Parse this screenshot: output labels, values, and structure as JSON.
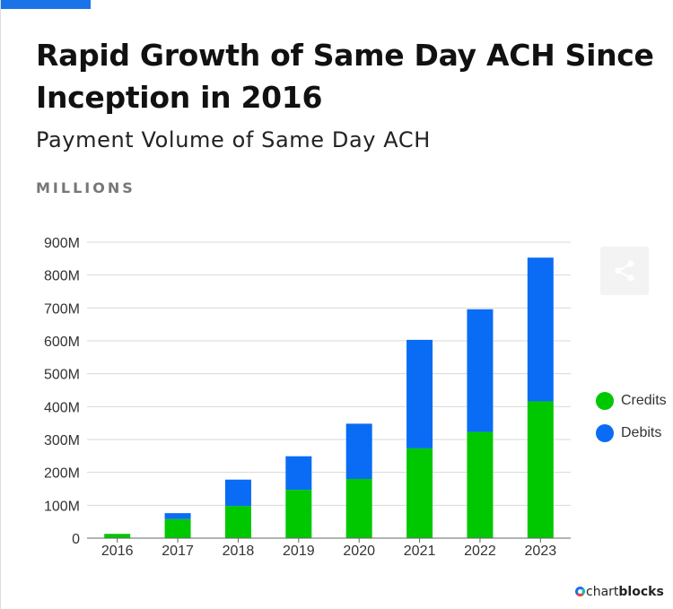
{
  "header": {
    "title": "Rapid Growth of Same Day ACH Since Inception in 2016",
    "subtitle": "Payment Volume of Same Day ACH",
    "units": "MILLIONS"
  },
  "colors": {
    "accent": "#1a73e8",
    "credits": "#00c800",
    "debits": "#0a6cf5"
  },
  "icons": {
    "share": "share-icon",
    "brand_logo": "chartblocks-logo-icon"
  },
  "branding": {
    "prefix": "chart",
    "bold": "blocks"
  },
  "chart_data": {
    "type": "bar",
    "stacked": true,
    "categories": [
      "2016",
      "2017",
      "2018",
      "2019",
      "2020",
      "2021",
      "2022",
      "2023"
    ],
    "series": [
      {
        "name": "Credits",
        "color": "#00c800",
        "values": [
          13,
          58,
          98,
          147,
          180,
          273,
          323,
          416
        ]
      },
      {
        "name": "Debits",
        "color": "#0a6cf5",
        "values": [
          0,
          18,
          80,
          102,
          168,
          330,
          373,
          437
        ]
      }
    ],
    "ylim": [
      0,
      900
    ],
    "yticks": [
      0,
      100,
      200,
      300,
      400,
      500,
      600,
      700,
      800,
      900
    ],
    "ytick_labels": [
      "0",
      "100M",
      "200M",
      "300M",
      "400M",
      "500M",
      "600M",
      "700M",
      "800M",
      "900M"
    ],
    "grid": true,
    "legend_position": "right"
  }
}
